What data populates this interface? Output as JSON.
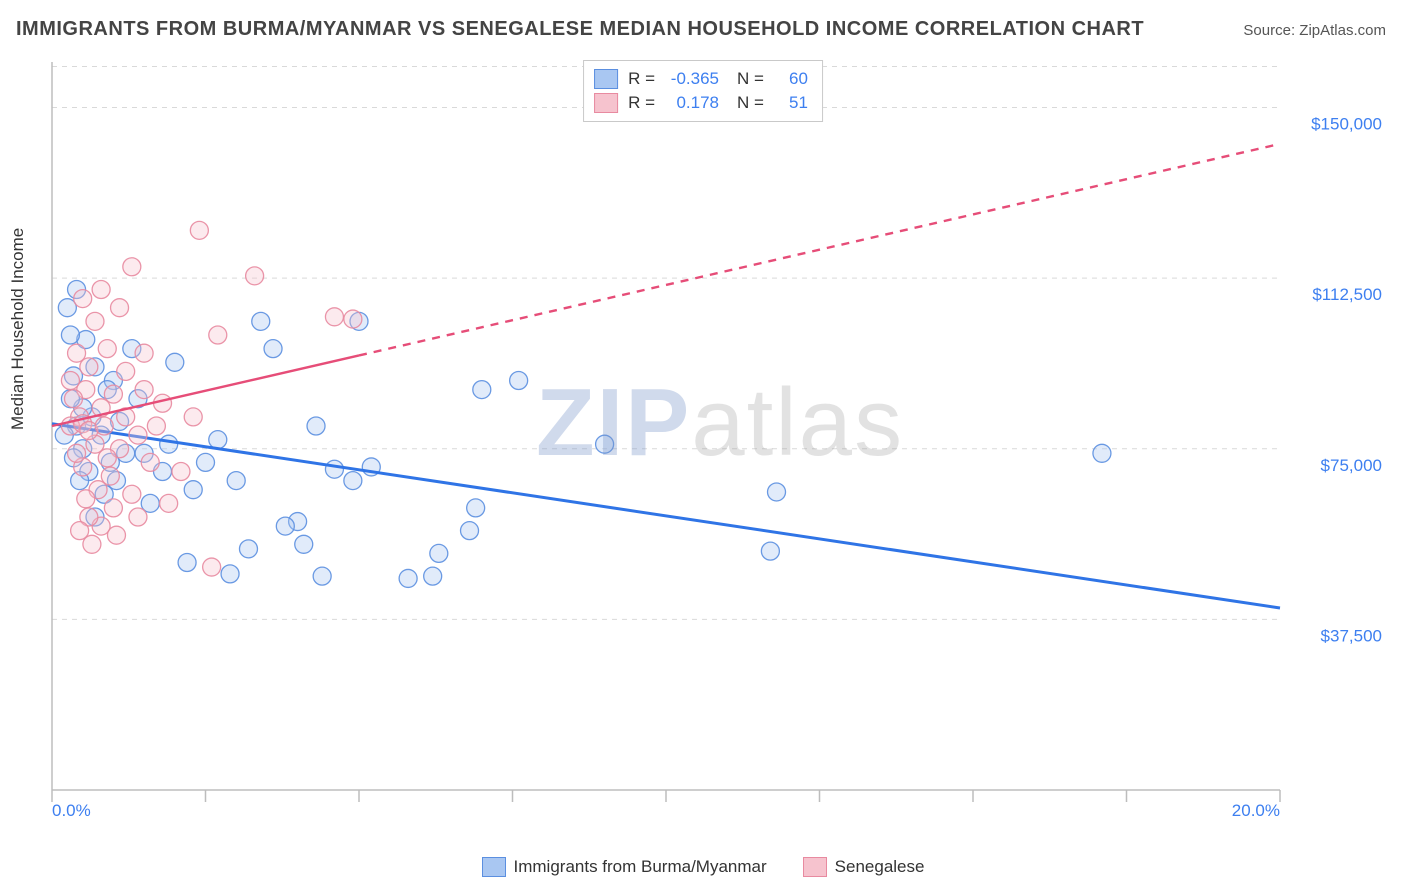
{
  "title": "IMMIGRANTS FROM BURMA/MYANMAR VS SENEGALESE MEDIAN HOUSEHOLD INCOME CORRELATION CHART",
  "source_label": "Source:",
  "source_value": "ZipAtlas.com",
  "ylabel": "Median Household Income",
  "watermark_bold": "ZIP",
  "watermark_light": "atlas",
  "chart": {
    "type": "scatter",
    "xlim": [
      0,
      20
    ],
    "ylim": [
      0,
      160000
    ],
    "x_ticks_major": [
      0,
      5,
      10,
      15,
      20
    ],
    "x_ticks_minor": [
      2.5,
      7.5,
      12.5,
      17.5
    ],
    "x_tick_labels": {
      "0": "0.0%",
      "20": "20.0%"
    },
    "y_gridlines": [
      37500,
      75000,
      112500,
      150000
    ],
    "y_tick_labels": [
      "$37,500",
      "$75,000",
      "$112,500",
      "$150,000"
    ],
    "background_color": "#ffffff",
    "grid_color": "#d9d9d9",
    "grid_dash": "5,5",
    "axis_color": "#bdbdbd",
    "marker_radius": 9,
    "marker_fill_opacity": 0.35,
    "marker_stroke_opacity": 0.9,
    "marker_stroke_width": 1.3,
    "series": [
      {
        "name": "Immigrants from Burma/Myanmar",
        "key": "burma",
        "color_fill": "#a9c7f2",
        "color_stroke": "#5b8fe0",
        "line_color": "#2f74e6",
        "line_width": 3,
        "line_dash_after_x": null,
        "R": "-0.365",
        "N": "60",
        "regression": {
          "x1": 0,
          "y1": 80500,
          "x2": 20,
          "y2": 40000
        },
        "points": [
          [
            17.1,
            74000
          ],
          [
            11.8,
            65500
          ],
          [
            9.0,
            76000
          ],
          [
            7.6,
            90000
          ],
          [
            11.7,
            52500
          ],
          [
            6.8,
            57000
          ],
          [
            6.3,
            52000
          ],
          [
            6.9,
            62000
          ],
          [
            5.2,
            71000
          ],
          [
            4.9,
            68000
          ],
          [
            5.8,
            46500
          ],
          [
            4.4,
            47000
          ],
          [
            4.1,
            54000
          ],
          [
            3.4,
            103000
          ],
          [
            3.6,
            97000
          ],
          [
            4.0,
            59000
          ],
          [
            3.2,
            53000
          ],
          [
            2.9,
            47500
          ],
          [
            2.7,
            77000
          ],
          [
            2.5,
            72000
          ],
          [
            2.2,
            50000
          ],
          [
            2.0,
            94000
          ],
          [
            1.9,
            76000
          ],
          [
            1.8,
            70000
          ],
          [
            1.6,
            63000
          ],
          [
            1.5,
            74000
          ],
          [
            1.4,
            86000
          ],
          [
            1.3,
            97000
          ],
          [
            1.2,
            74000
          ],
          [
            1.1,
            81000
          ],
          [
            1.05,
            68000
          ],
          [
            1.0,
            90000
          ],
          [
            0.95,
            72000
          ],
          [
            0.9,
            88000
          ],
          [
            0.85,
            65000
          ],
          [
            0.8,
            78000
          ],
          [
            0.7,
            60000
          ],
          [
            0.7,
            93000
          ],
          [
            0.65,
            82000
          ],
          [
            0.6,
            70000
          ],
          [
            0.55,
            99000
          ],
          [
            0.5,
            75000
          ],
          [
            0.5,
            84000
          ],
          [
            0.45,
            68000
          ],
          [
            0.4,
            110000
          ],
          [
            0.4,
            80000
          ],
          [
            0.35,
            91000
          ],
          [
            0.35,
            73000
          ],
          [
            0.3,
            86000
          ],
          [
            0.3,
            100000
          ],
          [
            4.3,
            80000
          ],
          [
            3.0,
            68000
          ],
          [
            2.3,
            66000
          ],
          [
            5.0,
            103000
          ],
          [
            4.6,
            70500
          ],
          [
            6.2,
            47000
          ],
          [
            3.8,
            58000
          ],
          [
            7.0,
            88000
          ],
          [
            0.25,
            106000
          ],
          [
            0.2,
            78000
          ]
        ]
      },
      {
        "name": "Senegalese",
        "key": "senegalese",
        "color_fill": "#f6c3ce",
        "color_stroke": "#e88aa0",
        "line_color": "#e64d78",
        "line_width": 2.4,
        "line_dash_after_x": 5.0,
        "R": "0.178",
        "N": "51",
        "regression": {
          "x1": 0,
          "y1": 80000,
          "x2": 20,
          "y2": 142000
        },
        "points": [
          [
            4.6,
            104000
          ],
          [
            4.9,
            103500
          ],
          [
            2.4,
            123000
          ],
          [
            3.3,
            113000
          ],
          [
            2.7,
            100000
          ],
          [
            1.3,
            115000
          ],
          [
            1.1,
            106000
          ],
          [
            0.8,
            110000
          ],
          [
            0.7,
            103000
          ],
          [
            0.5,
            108000
          ],
          [
            1.5,
            96000
          ],
          [
            1.2,
            92000
          ],
          [
            0.9,
            97000
          ],
          [
            0.6,
            93000
          ],
          [
            1.0,
            87000
          ],
          [
            0.8,
            84000
          ],
          [
            0.55,
            88000
          ],
          [
            0.45,
            82000
          ],
          [
            0.35,
            86000
          ],
          [
            0.3,
            80000
          ],
          [
            1.7,
            80000
          ],
          [
            1.4,
            78000
          ],
          [
            1.1,
            75000
          ],
          [
            0.9,
            73000
          ],
          [
            0.7,
            76000
          ],
          [
            0.5,
            71000
          ],
          [
            0.4,
            74000
          ],
          [
            0.95,
            69000
          ],
          [
            0.75,
            66000
          ],
          [
            0.55,
            64000
          ],
          [
            1.3,
            65000
          ],
          [
            1.0,
            62000
          ],
          [
            0.8,
            58000
          ],
          [
            0.6,
            60000
          ],
          [
            2.6,
            49000
          ],
          [
            1.9,
            63000
          ],
          [
            2.1,
            70000
          ],
          [
            2.3,
            82000
          ],
          [
            1.6,
            72000
          ],
          [
            0.45,
            57000
          ],
          [
            0.65,
            54000
          ],
          [
            1.05,
            56000
          ],
          [
            1.4,
            60000
          ],
          [
            1.8,
            85000
          ],
          [
            0.4,
            96000
          ],
          [
            0.5,
            80500
          ],
          [
            0.6,
            79000
          ],
          [
            0.3,
            90000
          ],
          [
            1.2,
            82000
          ],
          [
            0.85,
            80000
          ],
          [
            1.5,
            88000
          ]
        ]
      }
    ]
  },
  "stat_legend": {
    "rows": [
      {
        "swatch_fill": "#a9c7f2",
        "swatch_stroke": "#5b8fe0",
        "r_label": "R =",
        "r_val": "-0.365",
        "n_label": "N =",
        "n_val": "60"
      },
      {
        "swatch_fill": "#f6c3ce",
        "swatch_stroke": "#e88aa0",
        "r_label": "R =",
        "r_val": "0.178",
        "n_label": "N =",
        "n_val": "51"
      }
    ]
  },
  "bottom_legend": [
    {
      "swatch_fill": "#a9c7f2",
      "swatch_stroke": "#5b8fe0",
      "label": "Immigrants from Burma/Myanmar"
    },
    {
      "swatch_fill": "#f6c3ce",
      "swatch_stroke": "#e88aa0",
      "label": "Senegalese"
    }
  ]
}
